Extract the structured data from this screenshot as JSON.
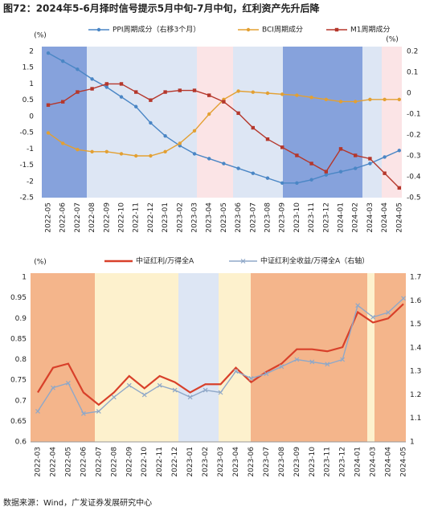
{
  "title": "图72：2024年5-6月择时信号提示5月中旬-7月中旬，红利资产先升后降",
  "source": "数据来源：Wind，广发证券发展研究中心",
  "chart_data": [
    {
      "type": "line",
      "y_label": "(%)",
      "y2_label": "(%)",
      "categories": [
        "2022-05",
        "2022-06",
        "2022-07",
        "2022-08",
        "2022-09",
        "2022-10",
        "2022-11",
        "2022-12",
        "2023-01",
        "2023-02",
        "2023-03",
        "2023-04",
        "2023-05",
        "2023-06",
        "2023-07",
        "2023-08",
        "2023-09",
        "2023-10",
        "2023-11",
        "2023-12",
        "2024-01",
        "2024-02",
        "2024-03",
        "2024-04",
        "2024-05"
      ],
      "series": [
        {
          "name": "PPI周期成分（右移3个月）",
          "color": "#4a86c5",
          "marker": "circle",
          "axis": "y",
          "values": [
            1.95,
            1.7,
            1.45,
            1.15,
            0.9,
            0.6,
            0.3,
            -0.2,
            -0.6,
            -0.9,
            -1.15,
            -1.3,
            -1.45,
            -1.6,
            -1.75,
            -1.9,
            -2.05,
            -2.05,
            -1.95,
            -1.8,
            -1.7,
            -1.6,
            -1.45,
            -1.25,
            -1.05
          ]
        },
        {
          "name": "BCI周期成分",
          "color": "#e3a032",
          "marker": "circle",
          "axis": "y2",
          "values": [
            -0.19,
            -0.24,
            -0.27,
            -0.28,
            -0.28,
            -0.29,
            -0.3,
            -0.3,
            -0.28,
            -0.24,
            -0.18,
            -0.1,
            -0.03,
            0.01,
            0.005,
            0,
            -0.005,
            -0.01,
            -0.02,
            -0.03,
            -0.04,
            -0.04,
            -0.03,
            -0.03,
            -0.03
          ]
        },
        {
          "name": "M1周期成分",
          "color": "#b5372b",
          "marker": "square",
          "axis": "y",
          "values": [
            0.35,
            0.45,
            0.75,
            0.85,
            1.0,
            1.0,
            0.75,
            0.5,
            0.75,
            0.8,
            0.8,
            0.65,
            0.45,
            0.1,
            -0.35,
            -0.7,
            -0.95,
            -1.2,
            -1.45,
            -1.7,
            -1.0,
            -1.2,
            -1.3,
            -1.75,
            -2.2
          ]
        }
      ],
      "ylim": [
        -2.5,
        2
      ],
      "yticks": [
        -2.5,
        -2,
        -1.5,
        -1,
        -0.5,
        0,
        0.5,
        1,
        1.5,
        2
      ],
      "y2lim": [
        -0.5,
        0.2
      ],
      "y2ticks": [
        -0.5,
        -0.4,
        -0.3,
        -0.2,
        -0.1,
        0,
        0.1,
        0.2
      ]
    },
    {
      "type": "line",
      "y_label": "(%)",
      "categories": [
        "2022-03",
        "2022-04",
        "2022-05",
        "2022-06",
        "2022-07",
        "2022-08",
        "2022-09",
        "2022-10",
        "2022-11",
        "2022-12",
        "2023-01",
        "2023-02",
        "2023-03",
        "2023-04",
        "2023-06",
        "2023-07",
        "2023-08",
        "2023-09",
        "2023-10",
        "2023-11",
        "2023-12",
        "2024-01",
        "2024-03",
        "2024-04",
        "2024-05"
      ],
      "series": [
        {
          "name": "中证红利/万得全A",
          "color": "#d8402a",
          "marker": "none",
          "axis": "y",
          "values": [
            0.72,
            0.78,
            0.79,
            0.72,
            0.69,
            0.72,
            0.76,
            0.73,
            0.76,
            0.745,
            0.72,
            0.74,
            0.74,
            0.78,
            0.745,
            0.77,
            0.79,
            0.825,
            0.825,
            0.82,
            0.83,
            0.915,
            0.89,
            0.9,
            0.935
          ]
        },
        {
          "name": "中证红利全收益/万得全A（右轴）",
          "color": "#8fa8c8",
          "marker": "x",
          "axis": "y2",
          "values": [
            1.13,
            1.23,
            1.25,
            1.12,
            1.13,
            1.19,
            1.24,
            1.2,
            1.24,
            1.22,
            1.19,
            1.22,
            1.21,
            1.3,
            1.27,
            1.29,
            1.32,
            1.35,
            1.34,
            1.33,
            1.35,
            1.58,
            1.53,
            1.55,
            1.61
          ]
        }
      ],
      "ylim": [
        0.6,
        1
      ],
      "yticks": [
        0.6,
        0.65,
        0.7,
        0.75,
        0.8,
        0.85,
        0.9,
        0.95,
        1
      ],
      "y2lim": [
        1,
        1.7
      ],
      "y2ticks": [
        1,
        1.1,
        1.2,
        1.3,
        1.4,
        1.5,
        1.6,
        1.7
      ]
    }
  ]
}
